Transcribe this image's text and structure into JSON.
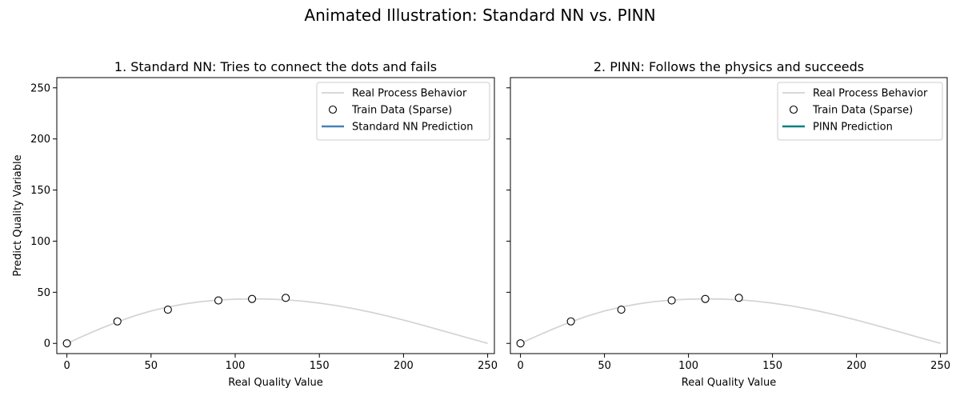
{
  "figure": {
    "suptitle": "Animated Illustration: Standard NN vs. PINN"
  },
  "chart_data": [
    {
      "type": "line",
      "title": "1. Standard NN: Tries to connect the dots and fails",
      "xlabel": "Real Quality Value",
      "ylabel": "Predict Quality Variable",
      "xlim": [
        -6,
        254
      ],
      "ylim": [
        -10,
        260
      ],
      "xticks": [
        0,
        50,
        100,
        150,
        200,
        250
      ],
      "yticks": [
        0,
        50,
        100,
        150,
        200,
        250
      ],
      "grid": false,
      "legend_position": "upper right",
      "series": [
        {
          "name": "Real Process Behavior",
          "kind": "line",
          "color": "#d3d3d3",
          "x": [
            0,
            10,
            20,
            30,
            40,
            50,
            60,
            70,
            80,
            90,
            100,
            110,
            120,
            130,
            140,
            150,
            160,
            170,
            180,
            190,
            200,
            210,
            220,
            230,
            240,
            250
          ],
          "y": [
            0,
            7.4,
            14.5,
            21,
            26.8,
            31.7,
            35.6,
            38.6,
            40.9,
            42.4,
            43.2,
            43.5,
            43.3,
            42.6,
            41.3,
            39.4,
            37,
            34.1,
            30.7,
            26.9,
            22.8,
            18.4,
            13.8,
            9.2,
            4.5,
            0
          ]
        },
        {
          "name": "Train Data (Sparse)",
          "kind": "scatter",
          "color": "#000000",
          "x": [
            0,
            30,
            60,
            90,
            110,
            130
          ],
          "y": [
            0,
            21.5,
            33,
            42,
            43.5,
            44.5
          ]
        },
        {
          "name": "Standard NN Prediction",
          "kind": "line",
          "color": "#4682b4",
          "x": [],
          "y": []
        }
      ]
    },
    {
      "type": "line",
      "title": "2. PINN: Follows the physics and succeeds",
      "xlabel": "Real Quality Value",
      "ylabel": "",
      "xlim": [
        -6,
        254
      ],
      "ylim": [
        -10,
        260
      ],
      "xticks": [
        0,
        50,
        100,
        150,
        200,
        250
      ],
      "yticks": [
        0,
        50,
        100,
        150,
        200,
        250
      ],
      "grid": false,
      "legend_position": "upper right",
      "series": [
        {
          "name": "Real Process Behavior",
          "kind": "line",
          "color": "#d3d3d3",
          "x": [
            0,
            10,
            20,
            30,
            40,
            50,
            60,
            70,
            80,
            90,
            100,
            110,
            120,
            130,
            140,
            150,
            160,
            170,
            180,
            190,
            200,
            210,
            220,
            230,
            240,
            250
          ],
          "y": [
            0,
            7.4,
            14.5,
            21,
            26.8,
            31.7,
            35.6,
            38.6,
            40.9,
            42.4,
            43.2,
            43.5,
            43.3,
            42.6,
            41.3,
            39.4,
            37,
            34.1,
            30.7,
            26.9,
            22.8,
            18.4,
            13.8,
            9.2,
            4.5,
            0
          ]
        },
        {
          "name": "Train Data (Sparse)",
          "kind": "scatter",
          "color": "#000000",
          "x": [
            0,
            30,
            60,
            90,
            110,
            130
          ],
          "y": [
            0,
            21.5,
            33,
            42,
            43.5,
            44.5
          ]
        },
        {
          "name": "PINN Prediction",
          "kind": "line",
          "color": "#008080",
          "x": [],
          "y": []
        }
      ]
    }
  ]
}
